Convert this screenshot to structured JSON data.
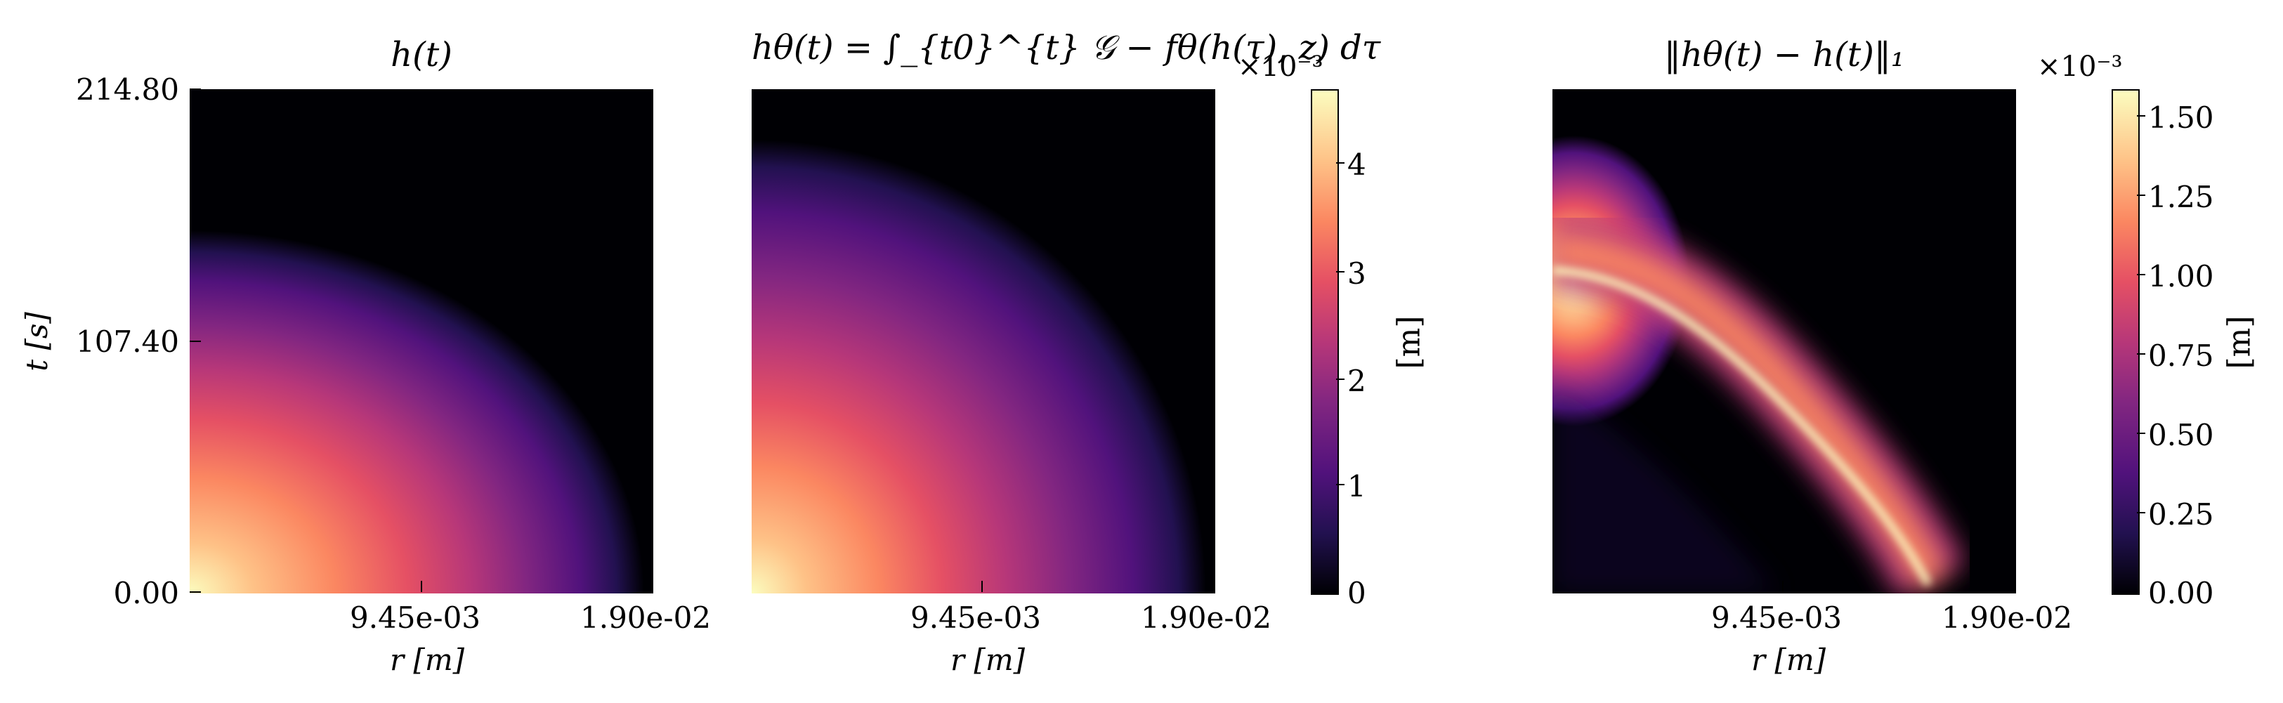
{
  "panels": [
    {
      "title": "h(t)",
      "xlabel": "r [m]",
      "ylabel": "t [s]",
      "xticks": [
        "9.45e-03",
        "1.90e-02"
      ],
      "yticks": [
        "214.80",
        "107.40",
        "0.00"
      ]
    },
    {
      "title": "hθ(t) = ∫_{t0}^{t} 𝒢 − fθ(h(τ), z) dτ",
      "xlabel": "r [m]",
      "xticks": [
        "9.45e-03",
        "1.90e-02"
      ]
    },
    {
      "title": "‖hθ(t) − h(t)‖₁",
      "xlabel": "r [m]",
      "xticks": [
        "9.45e-03",
        "1.90e-02"
      ]
    }
  ],
  "colorbars": [
    {
      "multiplier": "×10⁻³",
      "label": "[m]",
      "ticks": [
        "4",
        "3",
        "2",
        "1",
        "0"
      ]
    },
    {
      "multiplier": "×10⁻³",
      "label": "[m]",
      "ticks": [
        "1.50",
        "1.25",
        "1.00",
        "0.75",
        "0.50",
        "0.25",
        "0.00"
      ]
    }
  ],
  "chart_data": [
    {
      "type": "heatmap",
      "title": "h(t)",
      "xlabel": "r [m]",
      "ylabel": "t [s]",
      "xlim": [
        0,
        0.019
      ],
      "ylim": [
        0,
        214.8
      ],
      "colormap": "magma",
      "clim": [
        0,
        0.0046
      ],
      "description_values": {
        "max_at": [
          0,
          0
        ],
        "front_radius_at_t0": 0.0155,
        "front_time_at_r0": 135
      }
    },
    {
      "type": "heatmap",
      "title": "hθ(t)",
      "xlabel": "r [m]",
      "xlim": [
        0,
        0.019
      ],
      "ylim": [
        0,
        214.8
      ],
      "colormap": "magma",
      "clim": [
        0,
        0.0046
      ],
      "description_values": {
        "max_at": [
          0,
          0
        ],
        "front_radius_at_t0": 0.0153,
        "front_time_at_r0": 185
      }
    },
    {
      "type": "heatmap",
      "title": "‖hθ(t) − h(t)‖₁",
      "xlabel": "r [m]",
      "xlim": [
        0,
        0.019
      ],
      "ylim": [
        0,
        214.8
      ],
      "colormap": "magma",
      "clim": [
        0,
        0.0016
      ],
      "description_values": {
        "ridge_start": [
          0,
          137
        ],
        "ridge_end": [
          0.0155,
          0
        ]
      }
    }
  ]
}
